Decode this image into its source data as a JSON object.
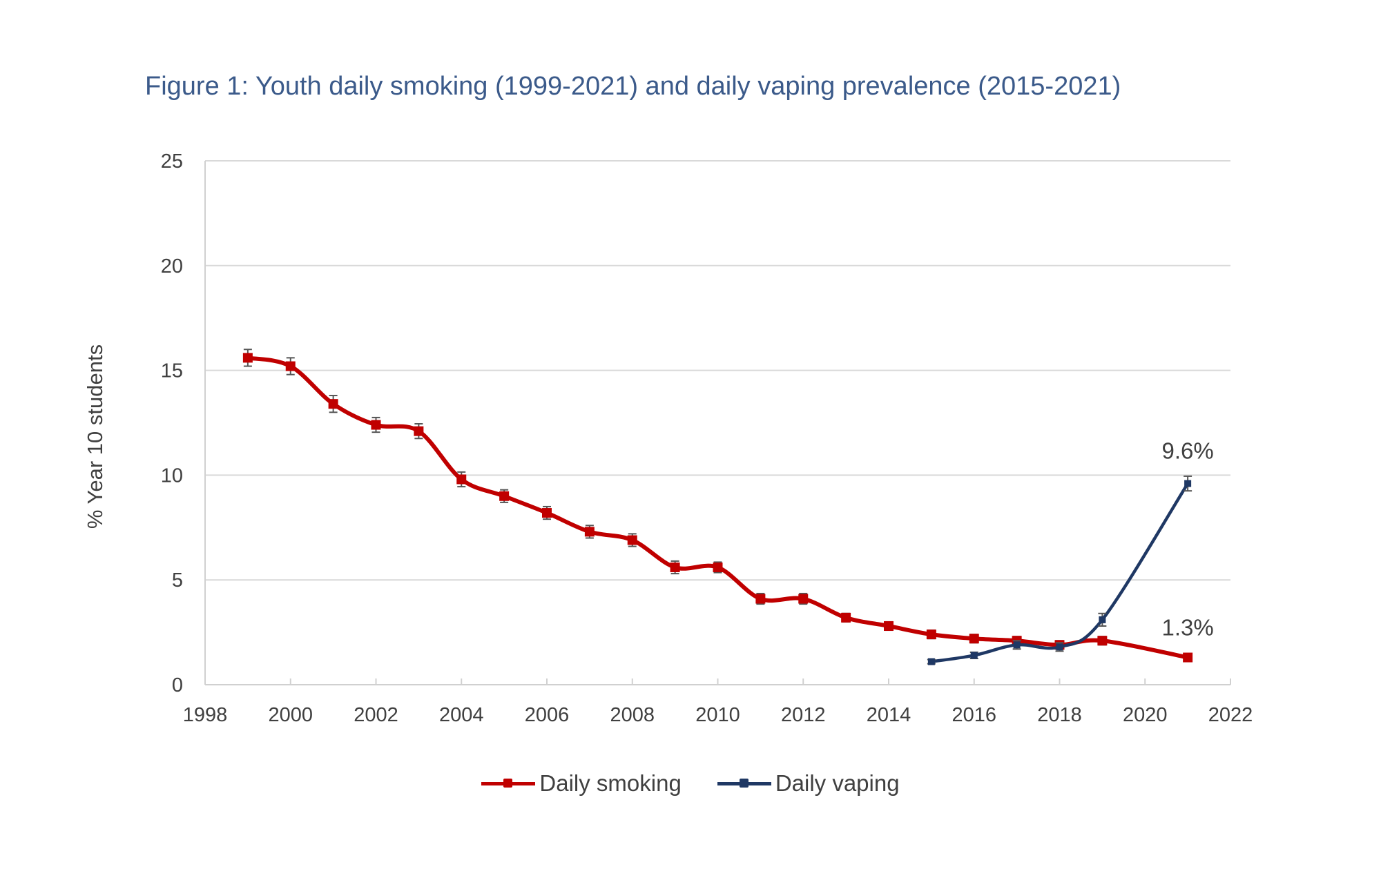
{
  "chart_data": {
    "type": "line",
    "title": "Figure 1: Youth daily smoking (1999-2021) and daily vaping prevalence (2015-2021)",
    "xlabel": "",
    "ylabel": "% Year 10 students",
    "xlim": [
      1998,
      2022
    ],
    "ylim": [
      0,
      25
    ],
    "xticks": [
      1998,
      2000,
      2002,
      2004,
      2006,
      2008,
      2010,
      2012,
      2014,
      2016,
      2018,
      2020,
      2022
    ],
    "yticks": [
      0,
      5,
      10,
      15,
      20,
      25
    ],
    "grid": true,
    "legend_position": "bottom",
    "series": [
      {
        "name": "Daily smoking",
        "color": "#c00000",
        "x": [
          1999,
          2000,
          2001,
          2002,
          2003,
          2004,
          2005,
          2006,
          2007,
          2008,
          2009,
          2010,
          2011,
          2012,
          2013,
          2014,
          2015,
          2016,
          2017,
          2018,
          2019,
          2021
        ],
        "y": [
          15.6,
          15.2,
          13.4,
          12.4,
          12.1,
          9.8,
          9.0,
          8.2,
          7.3,
          6.9,
          5.6,
          5.6,
          4.1,
          4.1,
          3.2,
          2.8,
          2.4,
          2.2,
          2.1,
          1.9,
          2.1,
          1.3
        ],
        "error": [
          0.4,
          0.4,
          0.4,
          0.35,
          0.35,
          0.35,
          0.3,
          0.3,
          0.3,
          0.3,
          0.3,
          0.25,
          0.25,
          0.25,
          0.2,
          0.2,
          0.2,
          0.2,
          0.2,
          0.2,
          0.2,
          0.15
        ]
      },
      {
        "name": "Daily vaping",
        "color": "#1f3864",
        "x": [
          2015,
          2016,
          2017,
          2018,
          2019,
          2021
        ],
        "y": [
          1.1,
          1.4,
          1.9,
          1.8,
          3.1,
          9.6
        ],
        "error": [
          0.1,
          0.15,
          0.2,
          0.2,
          0.3,
          0.35
        ]
      }
    ],
    "annotations": [
      {
        "text": "9.6%",
        "x": 2021,
        "y": 9.6,
        "series": "Daily vaping"
      },
      {
        "text": "1.3%",
        "x": 2021,
        "y": 1.3,
        "series": "Daily smoking"
      }
    ]
  }
}
